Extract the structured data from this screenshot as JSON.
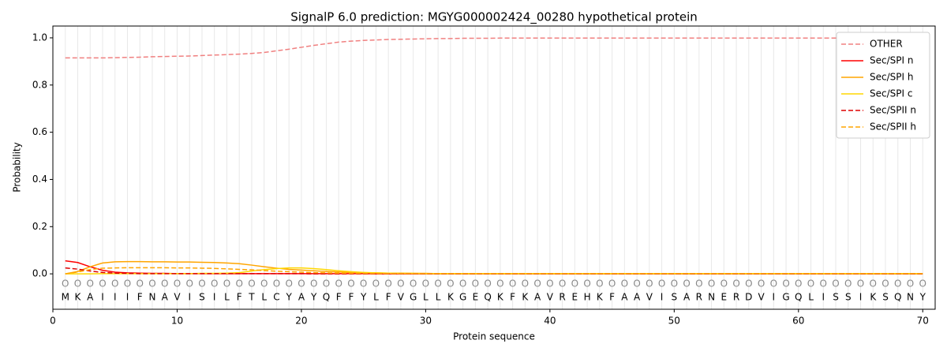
{
  "chart_data": {
    "type": "line",
    "title": "SignalP 6.0 prediction: MGYG000002424_00280 hypothetical protein",
    "x_label": "Protein sequence",
    "y_label": "Probability",
    "xlim": [
      0,
      71
    ],
    "ylim": [
      -0.15,
      1.05
    ],
    "xticks": [
      0,
      10,
      20,
      30,
      40,
      50,
      60,
      70
    ],
    "yticks": [
      {
        "value": 0,
        "label": "0.0"
      },
      0.2,
      0.4,
      0.6,
      0.8,
      {
        "value": 1,
        "label": "1.0"
      }
    ],
    "grid": true,
    "legend": "upper right",
    "x": [
      1,
      2,
      3,
      4,
      5,
      6,
      7,
      8,
      9,
      10,
      11,
      12,
      13,
      14,
      15,
      16,
      17,
      18,
      19,
      20,
      21,
      22,
      23,
      24,
      25,
      26,
      27,
      28,
      29,
      30,
      31,
      32,
      33,
      34,
      35,
      36,
      37,
      38,
      39,
      40,
      41,
      42,
      43,
      44,
      45,
      46,
      47,
      48,
      49,
      50,
      51,
      52,
      53,
      54,
      55,
      56,
      57,
      58,
      59,
      60,
      61,
      62,
      63,
      64,
      65,
      66,
      67,
      68,
      69,
      70
    ],
    "sequence": [
      "M",
      "K",
      "A",
      "I",
      "I",
      "I",
      "F",
      "N",
      "A",
      "V",
      "I",
      "S",
      "I",
      "L",
      "F",
      "T",
      "L",
      "C",
      "Y",
      "A",
      "Y",
      "Q",
      "F",
      "F",
      "Y",
      "L",
      "F",
      "V",
      "G",
      "L",
      "L",
      "K",
      "G",
      "E",
      "Q",
      "K",
      "F",
      "K",
      "A",
      "V",
      "R",
      "E",
      "H",
      "K",
      "F",
      "A",
      "A",
      "V",
      "I",
      "S",
      "A",
      "R",
      "N",
      "E",
      "R",
      "D",
      "V",
      "I",
      "G",
      "Q",
      "L",
      "I",
      "S",
      "S",
      "I",
      "K",
      "S",
      "Q",
      "N",
      "Y"
    ],
    "predicted_labels": [
      "O",
      "O",
      "O",
      "O",
      "O",
      "O",
      "O",
      "O",
      "O",
      "O",
      "O",
      "O",
      "O",
      "O",
      "O",
      "O",
      "O",
      "O",
      "O",
      "O",
      "O",
      "O",
      "O",
      "O",
      "O",
      "O",
      "O",
      "O",
      "O",
      "O",
      "O",
      "O",
      "O",
      "O",
      "O",
      "O",
      "O",
      "O",
      "O",
      "O",
      "O",
      "O",
      "O",
      "O",
      "O",
      "O",
      "O",
      "O",
      "O",
      "O",
      "O",
      "O",
      "O",
      "O",
      "O",
      "O",
      "O",
      "O",
      "O",
      "O",
      "O",
      "O",
      "O",
      "O",
      "O",
      "O",
      "O",
      "O",
      "O",
      "O"
    ],
    "series": [
      {
        "name": "OTHER",
        "color": "#f08080",
        "linestyle": "dashed",
        "values": [
          0.915,
          0.915,
          0.915,
          0.915,
          0.916,
          0.917,
          0.918,
          0.92,
          0.921,
          0.922,
          0.923,
          0.925,
          0.927,
          0.929,
          0.931,
          0.934,
          0.938,
          0.945,
          0.952,
          0.96,
          0.968,
          0.975,
          0.982,
          0.986,
          0.989,
          0.991,
          0.993,
          0.994,
          0.995,
          0.996,
          0.997,
          0.997,
          0.998,
          0.998,
          0.998,
          0.999,
          0.999,
          0.999,
          0.999,
          0.999,
          0.999,
          0.999,
          0.999,
          0.999,
          0.999,
          0.999,
          0.999,
          0.999,
          0.999,
          0.999,
          0.999,
          0.999,
          0.999,
          0.999,
          0.999,
          0.999,
          0.999,
          0.999,
          0.999,
          0.999,
          0.999,
          0.999,
          0.999,
          0.999,
          0.999,
          0.999,
          0.999,
          0.999,
          0.999,
          0.999
        ]
      },
      {
        "name": "Sec/SPI n",
        "color": "#ff0000",
        "linestyle": "solid",
        "values": [
          0.055,
          0.048,
          0.03,
          0.015,
          0.007,
          0.004,
          0.003,
          0.002,
          0.002,
          0.001,
          0.001,
          0.001,
          0.001,
          0.001,
          0.001,
          0.001,
          0.001,
          0.001,
          0.001,
          0.001,
          0.001,
          0.001,
          0.001,
          0.001,
          0.001,
          0,
          0,
          0,
          0,
          0,
          0,
          0,
          0,
          0,
          0,
          0,
          0,
          0,
          0,
          0,
          0,
          0,
          0,
          0,
          0,
          0,
          0,
          0,
          0,
          0,
          0,
          0,
          0,
          0,
          0,
          0,
          0,
          0,
          0,
          0,
          0,
          0,
          0,
          0,
          0,
          0,
          0,
          0,
          0,
          0
        ]
      },
      {
        "name": "Sec/SPI h",
        "color": "#ffa500",
        "linestyle": "solid",
        "values": [
          0.0,
          0.01,
          0.03,
          0.046,
          0.051,
          0.052,
          0.052,
          0.051,
          0.051,
          0.05,
          0.05,
          0.049,
          0.048,
          0.046,
          0.043,
          0.037,
          0.03,
          0.024,
          0.019,
          0.016,
          0.013,
          0.01,
          0.008,
          0.006,
          0.005,
          0.004,
          0.003,
          0.003,
          0.002,
          0.002,
          0.001,
          0.001,
          0.001,
          0.001,
          0.001,
          0.001,
          0.001,
          0.001,
          0.001,
          0.001,
          0.001,
          0.001,
          0.001,
          0.001,
          0.001,
          0.001,
          0.001,
          0.001,
          0.001,
          0.001,
          0.001,
          0.001,
          0.001,
          0.001,
          0.001,
          0.001,
          0.001,
          0.001,
          0.001,
          0.001,
          0.001,
          0.001,
          0.001,
          0.001,
          0.001,
          0.001,
          0.001,
          0.001,
          0.001,
          0.001
        ]
      },
      {
        "name": "Sec/SPI c",
        "color": "#ffd700",
        "linestyle": "solid",
        "values": [
          0,
          0,
          0,
          0.001,
          0.001,
          0.001,
          0.001,
          0.001,
          0.001,
          0.001,
          0.001,
          0.002,
          0.002,
          0.003,
          0.005,
          0.012,
          0.018,
          0.022,
          0.025,
          0.025,
          0.022,
          0.018,
          0.013,
          0.009,
          0.006,
          0.004,
          0.003,
          0.002,
          0.002,
          0.001,
          0.001,
          0.001,
          0.001,
          0.001,
          0.001,
          0.001,
          0.001,
          0.001,
          0.001,
          0.001,
          0.001,
          0.001,
          0.001,
          0.001,
          0.001,
          0.001,
          0.001,
          0.001,
          0.001,
          0.001,
          0.001,
          0.001,
          0.001,
          0.001,
          0.001,
          0.001,
          0.001,
          0.001,
          0.001,
          0.001,
          0.001,
          0.001,
          0.001,
          0.001,
          0.001,
          0.001,
          0.001,
          0.001,
          0.001,
          0.001
        ]
      },
      {
        "name": "Sec/SPII n",
        "color": "#dd0000",
        "linestyle": "dashed",
        "values": [
          0.025,
          0.02,
          0.012,
          0.006,
          0.003,
          0.002,
          0.001,
          0.001,
          0.001,
          0.001,
          0.001,
          0.001,
          0.001,
          0.001,
          0.001,
          0.001,
          0.001,
          0.001,
          0.001,
          0.001,
          0,
          0,
          0,
          0,
          0,
          0,
          0,
          0,
          0,
          0,
          0,
          0,
          0,
          0,
          0,
          0,
          0,
          0,
          0,
          0,
          0,
          0,
          0,
          0,
          0,
          0,
          0,
          0,
          0,
          0,
          0,
          0,
          0,
          0,
          0,
          0,
          0,
          0,
          0,
          0,
          0,
          0,
          0,
          0,
          0,
          0,
          0,
          0,
          0,
          0
        ]
      },
      {
        "name": "Sec/SPII h",
        "color": "#ffa500",
        "linestyle": "dashed",
        "values": [
          0.0,
          0.008,
          0.018,
          0.024,
          0.025,
          0.026,
          0.026,
          0.026,
          0.026,
          0.025,
          0.025,
          0.024,
          0.023,
          0.021,
          0.019,
          0.017,
          0.014,
          0.011,
          0.009,
          0.007,
          0.005,
          0.004,
          0.003,
          0.002,
          0.002,
          0.001,
          0.001,
          0.001,
          0.001,
          0.001,
          0.001,
          0.001,
          0.001,
          0.001,
          0.001,
          0.001,
          0.001,
          0.001,
          0.001,
          0.001,
          0.001,
          0.001,
          0.001,
          0.001,
          0.001,
          0.001,
          0.001,
          0.001,
          0.001,
          0.001,
          0.001,
          0.001,
          0.001,
          0.001,
          0.001,
          0.001,
          0.001,
          0.001,
          0.001,
          0.001,
          0.001,
          0.001,
          0.001,
          0.001,
          0.001,
          0.001,
          0.001,
          0.001,
          0.001,
          0.001
        ]
      }
    ]
  }
}
